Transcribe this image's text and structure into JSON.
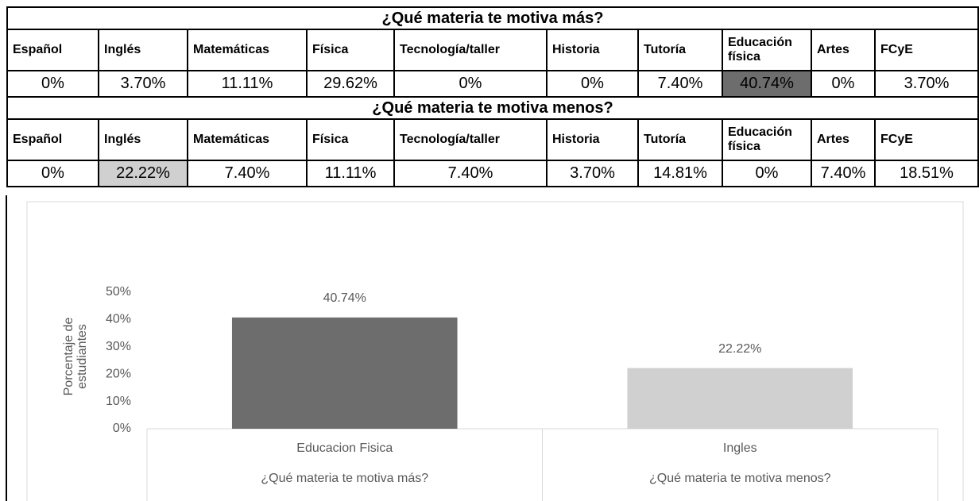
{
  "tables": [
    {
      "title": "¿Qué materia te motiva más?",
      "headers": [
        "Español",
        "Inglés",
        "Matemáticas",
        "Física",
        "Tecnología/taller",
        "Historia",
        "Tutoría",
        "Educación física",
        "Artes",
        "FCyE"
      ],
      "values": [
        "0%",
        "3.70%",
        "11.11%",
        "29.62%",
        "0%",
        "0%",
        "7.40%",
        "40.74%",
        "0%",
        "3.70%"
      ],
      "highlight_col": 7,
      "highlight_color": "#6d6d6d"
    },
    {
      "title": "¿Qué materia te motiva menos?",
      "headers": [
        "Español",
        "Inglés",
        "Matemáticas",
        "Física",
        "Tecnología/taller",
        "Historia",
        "Tutoría",
        "Educación física",
        "Artes",
        "FCyE"
      ],
      "values": [
        "0%",
        "22.22%",
        "7.40%",
        "11.11%",
        "7.40%",
        "3.70%",
        "14.81%",
        "0%",
        "7.40%",
        "18.51%"
      ],
      "highlight_col": 1,
      "highlight_color": "#d0d0d0"
    }
  ],
  "chart_data": {
    "type": "bar",
    "y_label": "Porcentaje de estudiantes",
    "categories": [
      "Educacion Fisica",
      "Ingles"
    ],
    "groups": [
      "¿Qué materia te motiva más?",
      "¿Qué materia te motiva menos?"
    ],
    "values": [
      40.74,
      22.22
    ],
    "value_labels": [
      "40.74%",
      "22.22%"
    ],
    "colors": [
      "#6d6d6d",
      "#d0d0d0"
    ],
    "ylim": [
      0,
      50
    ],
    "yticks": [
      {
        "value": 0,
        "label": "0%"
      },
      {
        "value": 10,
        "label": "10%"
      },
      {
        "value": 20,
        "label": "20%"
      },
      {
        "value": 30,
        "label": "30%"
      },
      {
        "value": 40,
        "label": "40%"
      },
      {
        "value": 50,
        "label": "50%"
      }
    ]
  }
}
